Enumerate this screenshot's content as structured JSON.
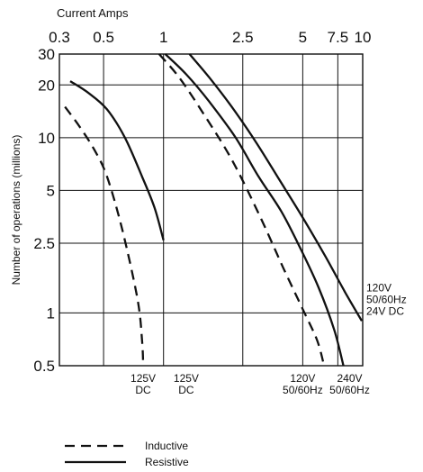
{
  "chart_data": {
    "type": "line",
    "title": "",
    "xlabel": "Current Amps",
    "ylabel": "Number of operations (millions)",
    "x_scale": "log",
    "y_scale": "log",
    "xlim": [
      0.3,
      10
    ],
    "ylim": [
      0.5,
      30
    ],
    "grid": true,
    "x_ticks": [
      {
        "value": 0.3,
        "label": "0.3"
      },
      {
        "value": 0.5,
        "label": "0.5"
      },
      {
        "value": 1,
        "label": "1"
      },
      {
        "value": 2.5,
        "label": "2.5"
      },
      {
        "value": 5,
        "label": "5"
      },
      {
        "value": 7.5,
        "label": "7.5"
      },
      {
        "value": 10,
        "label": "10"
      }
    ],
    "y_ticks": [
      {
        "value": 30,
        "label": "30"
      },
      {
        "value": 20,
        "label": "20"
      },
      {
        "value": 10,
        "label": "10"
      },
      {
        "value": 5,
        "label": "5"
      },
      {
        "value": 2.5,
        "label": "2.5"
      },
      {
        "value": 1,
        "label": "1"
      },
      {
        "value": 0.5,
        "label": "0.5"
      }
    ],
    "legend": {
      "position": "bottom-left",
      "entries": [
        {
          "label": "Inductive",
          "style": "dashed"
        },
        {
          "label": "Resistive",
          "style": "solid"
        }
      ]
    },
    "series": [
      {
        "load": "125V DC",
        "style": "dashed",
        "x": [
          0.32,
          0.38,
          0.45,
          0.52,
          0.62,
          0.74,
          0.78,
          0.79
        ],
        "y": [
          15,
          11.5,
          8.5,
          6,
          3,
          1.2,
          0.7,
          0.5
        ]
      },
      {
        "load": "125V DC",
        "style": "solid",
        "x": [
          0.34,
          0.42,
          0.52,
          0.64,
          0.78,
          0.9,
          1.0
        ],
        "y": [
          21,
          18,
          14.5,
          10,
          6,
          4,
          2.6
        ]
      },
      {
        "load": "120V 50/60Hz",
        "style": "dashed",
        "x": [
          0.95,
          1.2,
          1.6,
          2.2,
          3.0,
          4.0,
          5.0,
          5.9,
          6.4
        ],
        "y": [
          30,
          22,
          13.5,
          7.5,
          3.7,
          1.8,
          1.05,
          0.7,
          0.5
        ]
      },
      {
        "load": "120V 50/60Hz",
        "style": "solid",
        "x": [
          1.02,
          1.3,
          1.7,
          2.3,
          3.0,
          3.9,
          4.9,
          6.0,
          7.2,
          8.0
        ],
        "y": [
          30,
          23,
          16,
          10,
          6,
          3.8,
          2.3,
          1.4,
          0.8,
          0.5
        ]
      },
      {
        "load": "240V 50/60Hz",
        "style": "solid",
        "x": [
          1.35,
          1.7,
          2.2,
          2.9,
          3.8,
          5.0,
          6.5,
          8.2,
          9.9
        ],
        "y": [
          30,
          22,
          15,
          9.5,
          5.8,
          3.5,
          2.1,
          1.3,
          0.9
        ]
      }
    ],
    "annotations": [
      {
        "x": 0.79,
        "line1": "125V",
        "line2": "DC"
      },
      {
        "x": 1.3,
        "line1": "125V",
        "line2": "DC"
      },
      {
        "x": 5.0,
        "line1": "120V",
        "line2": "50/60Hz"
      },
      {
        "x": 8.6,
        "line1": "240V",
        "line2": "50/60Hz"
      },
      {
        "y": 1.0,
        "line1": "120V",
        "line2": "50/60Hz",
        "line3": "24V DC"
      }
    ]
  }
}
